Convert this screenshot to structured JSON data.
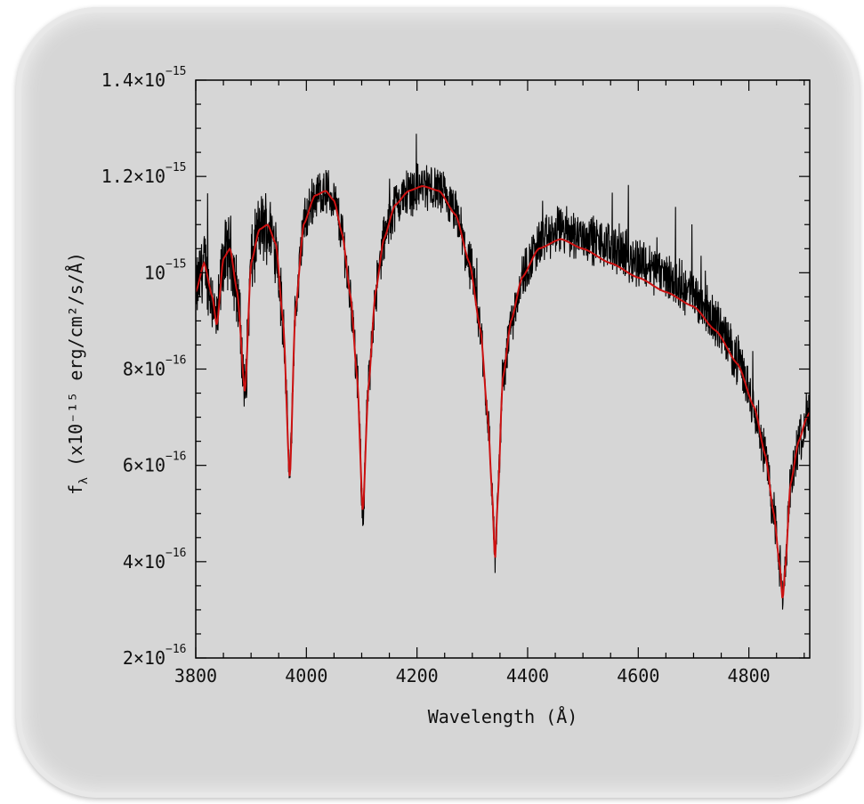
{
  "chart_data": {
    "type": "line",
    "title": "",
    "xlabel": "Wavelength (Å)",
    "ylabel": "f_λ  (x10⁻¹⁵ erg/cm²/s/Å)",
    "ylabel_parts": {
      "f": "f",
      "sub": "λ",
      "rest": "(x10⁻¹⁵ erg/cm²/s/Å)"
    },
    "xlim": [
      3800,
      4910
    ],
    "ylim": [
      2e-16,
      1.4e-15
    ],
    "x_ticks": [
      3800,
      4000,
      4200,
      4400,
      4600,
      4800
    ],
    "x_tick_labels": [
      "3800",
      "4000",
      "4200",
      "4400",
      "4600",
      "4800"
    ],
    "y_ticks": [
      {
        "value": 2e-16,
        "mantissa": "2×10",
        "exp": "−16"
      },
      {
        "value": 4e-16,
        "mantissa": "4×10",
        "exp": "−16"
      },
      {
        "value": 6e-16,
        "mantissa": "6×10",
        "exp": "−16"
      },
      {
        "value": 8e-16,
        "mantissa": "8×10",
        "exp": "−16"
      },
      {
        "value": 1e-15,
        "mantissa": "10",
        "exp": "−15"
      },
      {
        "value": 1.2e-15,
        "mantissa": "1.2×10",
        "exp": "−15"
      },
      {
        "value": 1.4e-15,
        "mantissa": "1.4×10",
        "exp": "−15"
      }
    ],
    "series": [
      {
        "color": "#000000",
        "style": "noisy observed spectrum"
      },
      {
        "color": "#cc1111",
        "style": "smooth model fit",
        "x": [
          3800,
          3815,
          3830,
          3838,
          3850,
          3862,
          3875,
          3889,
          3900,
          3915,
          3930,
          3945,
          3958,
          3970,
          3980,
          3995,
          4015,
          4035,
          4050,
          4065,
          4080,
          4092,
          4102,
          4112,
          4125,
          4140,
          4160,
          4185,
          4210,
          4240,
          4270,
          4295,
          4315,
          4328,
          4336,
          4341,
          4346,
          4355,
          4370,
          4390,
          4420,
          4460,
          4500,
          4550,
          4600,
          4650,
          4700,
          4740,
          4780,
          4810,
          4830,
          4845,
          4856,
          4861,
          4866,
          4875,
          4890,
          4905,
          4910
        ],
        "y": [
          9.6e-16,
          1.02e-15,
          9.5e-16,
          8.9e-16,
          1.03e-15,
          1.05e-15,
          9.6e-16,
          7.5e-16,
          1.02e-15,
          1.09e-15,
          1.1e-15,
          1.06e-15,
          9e-16,
          5.7e-16,
          9.2e-16,
          1.1e-15,
          1.16e-15,
          1.17e-15,
          1.15e-15,
          1.08e-15,
          9.5e-16,
          7.8e-16,
          5e-16,
          7.6e-16,
          9.6e-16,
          1.07e-15,
          1.14e-15,
          1.17e-15,
          1.18e-15,
          1.17e-15,
          1.12e-15,
          1.02e-15,
          8.8e-16,
          7e-16,
          5.4e-16,
          4e-16,
          5.3e-16,
          7.8e-16,
          9e-16,
          9.9e-16,
          1.05e-15,
          1.07e-15,
          1.05e-15,
          1.02e-15,
          9.9e-16,
          9.6e-16,
          9.3e-16,
          8.8e-16,
          8.1e-16,
          7.2e-16,
          6.2e-16,
          5e-16,
          3.9e-16,
          3.2e-16,
          3.9e-16,
          5.6e-16,
          6.5e-16,
          7e-16,
          7.1e-16
        ]
      }
    ],
    "grid": false,
    "legend": "none"
  }
}
